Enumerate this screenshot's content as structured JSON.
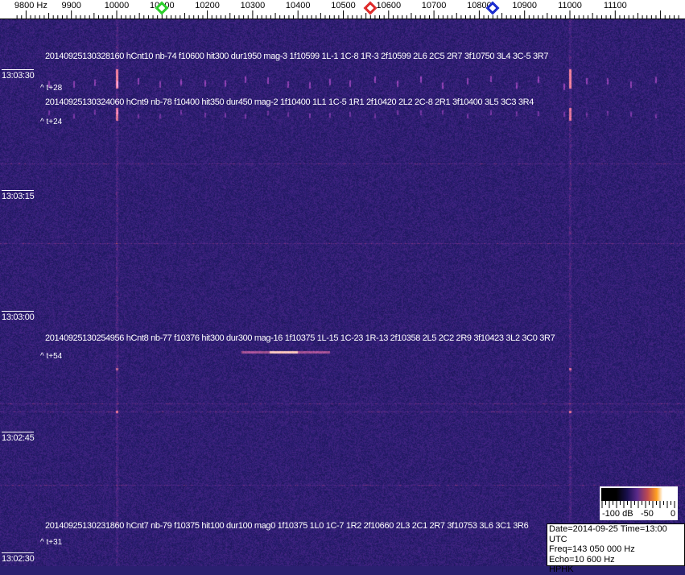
{
  "chart_data": {
    "type": "heatmap",
    "xlabel_unit": "Hz",
    "x_ticks": [
      "9800 Hz",
      "9900",
      "10000",
      "10100",
      "10200",
      "10300",
      "10400",
      "10500",
      "10600",
      "10700",
      "10800",
      "10900",
      "11000",
      "11100"
    ],
    "x_tick_values": [
      9800,
      9900,
      10000,
      10100,
      10200,
      10300,
      10400,
      10500,
      10600,
      10700,
      10800,
      10900,
      11000,
      11100
    ],
    "y_ticks": [
      "13:03:30",
      "13:03:15",
      "13:03:00",
      "13:02:45",
      "13:02:30"
    ],
    "markers": [
      {
        "freq": 10100,
        "color": "#22cc22"
      },
      {
        "freq": 10560,
        "color": "#dd2222"
      },
      {
        "freq": 10830,
        "color": "#1122cc"
      }
    ],
    "colorbar": {
      "labels": [
        "-100 dB",
        "-50",
        "0"
      ],
      "range": [
        -100,
        0
      ]
    }
  },
  "detections": [
    {
      "text": "20140925130328160 hCnt10 nb-74 f10600 hit300 dur1950 mag-3 1f10599 1L-1 1C-8 1R-3 2f10599 2L6 2C5 2R7 3f10750 3L4 3C-5 3R7",
      "offset": "^ t+28"
    },
    {
      "text": "20140925130324060 hCnt9 nb-78 f10400 hit350 dur450 mag-2 1f10400 1L1 1C-5 1R1 2f10420 2L2 2C-8 2R1 3f10400 3L5 3C3 3R4",
      "offset": "^ t+24"
    },
    {
      "text": "20140925130254956 hCnt8 nb-77 f10376 hit300 dur300 mag-16 1f10375 1L-15 1C-23 1R-13 2f10358 2L5 2C2 2R9 3f10423 3L2 3C0 3R7",
      "offset": "^ t+54"
    },
    {
      "text": "20140925130231860 hCnt7 nb-79 f10375 hit100 dur100 mag0 1f10375 1L0 1C-7 1R2 2f10660 2L3 2C1 2R7 3f10753 3L6 3C1 3R6",
      "offset": "^ t+31"
    }
  ],
  "info": {
    "line1": "Date=2014-09-25 Time=13:00 UTC",
    "line2": "Freq=143 050 000 Hz",
    "line3": "Echo=10 600 Hz",
    "line4": "HPHK"
  },
  "colors": {
    "background": "#2a2070",
    "signal": "#ffa020"
  }
}
